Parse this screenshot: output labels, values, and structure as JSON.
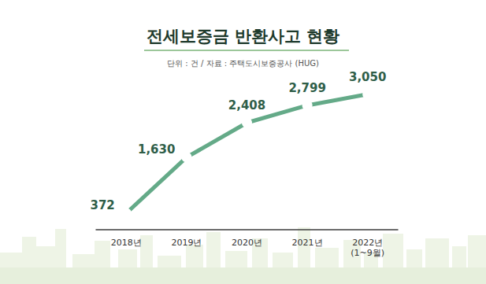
{
  "chart_data": {
    "type": "line",
    "title": "전세보증금 반환사고 현황",
    "subtitle": "단위 : 건 / 자료 : 주택도시보증공사 (HUG)",
    "categories": [
      "2018년",
      "2019년",
      "2020년",
      "2021년",
      "2022년\n(1~9월)"
    ],
    "values": [
      372,
      1630,
      2408,
      2799,
      3050
    ],
    "value_labels": [
      "372",
      "1,630",
      "2,408",
      "2,799",
      "3,050"
    ],
    "color": "#64aa88",
    "marker": "circle",
    "ylim": [
      0,
      3400
    ],
    "yticks": [
      0,
      3400
    ],
    "grid": false,
    "data_labels": true,
    "tick_labels": "x"
  }
}
